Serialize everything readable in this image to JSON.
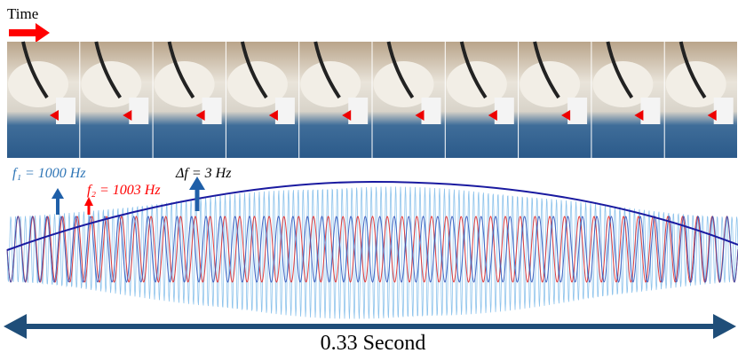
{
  "time_label": "Time",
  "labels": {
    "f1": "f₁ = 1000 Hz",
    "f2": "f₂ = 1003 Hz",
    "delta": "Δf = 3 Hz"
  },
  "duration": "0.33 Second"
}
